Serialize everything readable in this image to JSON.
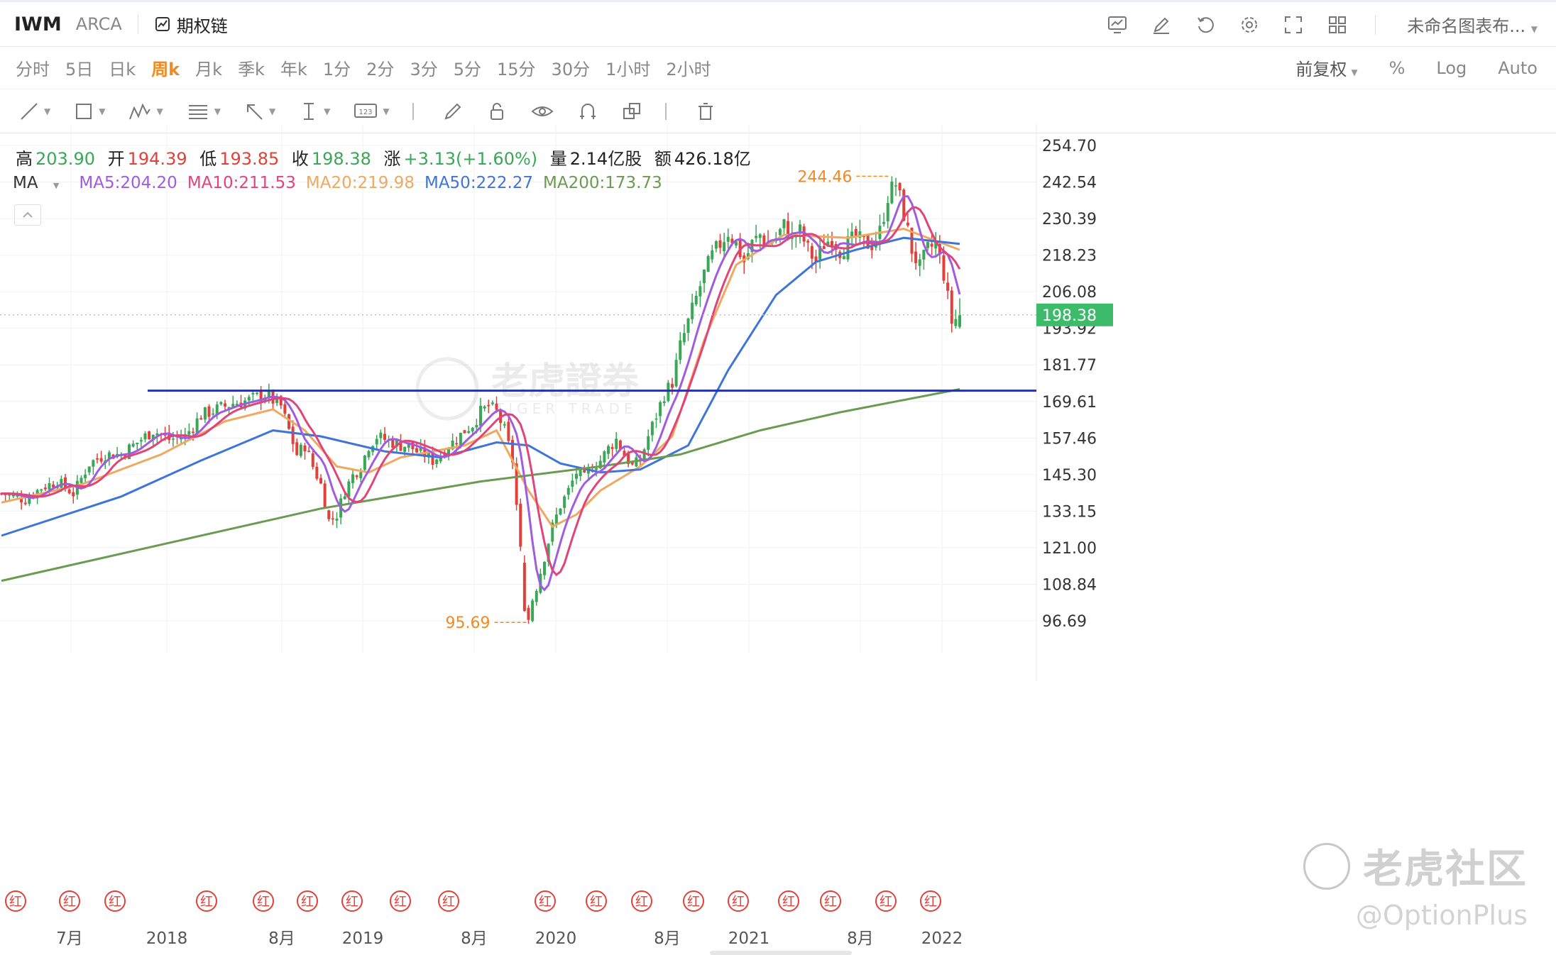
{
  "header": {
    "symbol": "IWM",
    "exchange": "ARCA",
    "option_chain": "期权链",
    "chart_name": "未命名图表布..."
  },
  "periods": [
    "分时",
    "5日",
    "日k",
    "周k",
    "月k",
    "季k",
    "年k",
    "1分",
    "2分",
    "3分",
    "5分",
    "15分",
    "30分",
    "1小时",
    "2小时"
  ],
  "active_period": "周k",
  "right_options": [
    "前复权",
    "%",
    "Log",
    "Auto"
  ],
  "ohlc": {
    "high_label": "高",
    "high": "203.90",
    "open_label": "开",
    "open": "194.39",
    "low_label": "低",
    "low": "193.85",
    "close_label": "收",
    "close": "198.38",
    "change_label": "涨",
    "change": "+3.13(+1.60%)",
    "volume_label": "量",
    "volume": "2.14亿股",
    "amount_label": "额",
    "amount": "426.18亿"
  },
  "ma_legend": {
    "label": "MA",
    "items": [
      {
        "text": "MA5:204.20",
        "color": "#a05ce0"
      },
      {
        "text": "MA10:211.53",
        "color": "#e0457a"
      },
      {
        "text": "MA20:219.98",
        "color": "#f0a860"
      },
      {
        "text": "MA50:222.27",
        "color": "#3f74d8"
      },
      {
        "text": "MA200:173.73",
        "color": "#6b9a52"
      }
    ]
  },
  "chart_data": {
    "type": "candlestick",
    "interval": "weekly",
    "y_ticks": [
      254.7,
      242.54,
      230.39,
      218.23,
      206.08,
      193.92,
      181.77,
      169.61,
      157.46,
      145.3,
      133.15,
      121.0,
      108.84,
      "96.69"
    ],
    "ylim": [
      96.69,
      254.7
    ],
    "x_labels": [
      "7月",
      "2018",
      "8月",
      "2019",
      "8月",
      "2020",
      "8月",
      "2021",
      "8月",
      "2022"
    ],
    "current_price": "198.38",
    "annotations": {
      "high": "244.46",
      "low": "95.69"
    },
    "dividend_marker": "红",
    "price_path": [
      [
        0,
        139
      ],
      [
        6,
        137
      ],
      [
        10,
        141
      ],
      [
        14,
        143
      ],
      [
        18,
        139
      ],
      [
        22,
        149
      ],
      [
        26,
        152
      ],
      [
        30,
        152
      ],
      [
        34,
        156
      ],
      [
        38,
        160
      ],
      [
        42,
        157
      ],
      [
        46,
        158
      ],
      [
        50,
        165
      ],
      [
        54,
        167
      ],
      [
        58,
        169
      ],
      [
        62,
        170
      ],
      [
        66,
        172
      ],
      [
        70,
        168
      ],
      [
        72,
        160
      ],
      [
        74,
        152
      ],
      [
        76,
        155
      ],
      [
        78,
        148
      ],
      [
        80,
        142
      ],
      [
        82,
        130
      ],
      [
        84,
        132
      ],
      [
        86,
        140
      ],
      [
        88,
        145
      ],
      [
        90,
        148
      ],
      [
        92,
        155
      ],
      [
        94,
        158
      ],
      [
        96,
        157
      ],
      [
        98,
        156
      ],
      [
        100,
        155
      ],
      [
        102,
        155
      ],
      [
        104,
        153
      ],
      [
        106,
        152
      ],
      [
        108,
        150
      ],
      [
        110,
        152
      ],
      [
        112,
        155
      ],
      [
        114,
        157
      ],
      [
        116,
        160
      ],
      [
        118,
        162
      ],
      [
        120,
        166
      ],
      [
        122,
        168
      ],
      [
        124,
        166
      ],
      [
        126,
        160
      ],
      [
        128,
        150
      ],
      [
        130,
        120
      ],
      [
        132,
        100
      ],
      [
        134,
        108
      ],
      [
        136,
        118
      ],
      [
        138,
        128
      ],
      [
        140,
        135
      ],
      [
        142,
        140
      ],
      [
        144,
        146
      ],
      [
        146,
        144
      ],
      [
        148,
        148
      ],
      [
        150,
        150
      ],
      [
        152,
        154
      ],
      [
        154,
        157
      ],
      [
        156,
        152
      ],
      [
        158,
        148
      ],
      [
        160,
        150
      ],
      [
        162,
        158
      ],
      [
        164,
        165
      ],
      [
        166,
        172
      ],
      [
        168,
        176
      ],
      [
        170,
        188
      ],
      [
        172,
        196
      ],
      [
        174,
        204
      ],
      [
        176,
        212
      ],
      [
        178,
        218
      ],
      [
        180,
        222
      ],
      [
        182,
        226
      ],
      [
        184,
        222
      ],
      [
        186,
        216
      ],
      [
        188,
        222
      ],
      [
        190,
        225
      ],
      [
        192,
        222
      ],
      [
        194,
        224
      ],
      [
        196,
        228
      ],
      [
        198,
        224
      ],
      [
        200,
        226
      ],
      [
        202,
        220
      ],
      [
        204,
        216
      ],
      [
        206,
        222
      ],
      [
        208,
        224
      ],
      [
        210,
        220
      ],
      [
        212,
        222
      ],
      [
        214,
        224
      ],
      [
        216,
        222
      ],
      [
        218,
        222
      ],
      [
        220,
        226
      ],
      [
        222,
        238
      ],
      [
        224,
        242
      ],
      [
        226,
        232
      ],
      [
        228,
        220
      ],
      [
        230,
        214
      ],
      [
        232,
        220
      ],
      [
        234,
        222
      ],
      [
        236,
        212
      ],
      [
        238,
        196
      ],
      [
        240,
        198
      ]
    ],
    "ma_series": [
      {
        "name": "MA20",
        "color": "#f0a860",
        "values": [
          [
            0,
            136
          ],
          [
            20,
            142
          ],
          [
            40,
            152
          ],
          [
            56,
            163
          ],
          [
            68,
            167
          ],
          [
            76,
            160
          ],
          [
            84,
            148
          ],
          [
            92,
            146
          ],
          [
            100,
            151
          ],
          [
            116,
            155
          ],
          [
            124,
            160
          ],
          [
            132,
            140
          ],
          [
            138,
            128
          ],
          [
            144,
            132
          ],
          [
            150,
            140
          ],
          [
            160,
            148
          ],
          [
            168,
            158
          ],
          [
            176,
            190
          ],
          [
            184,
            215
          ],
          [
            196,
            225
          ],
          [
            212,
            224
          ],
          [
            226,
            227
          ],
          [
            240,
            220
          ]
        ]
      },
      {
        "name": "MA50",
        "color": "#3f74d8",
        "values": [
          [
            0,
            125
          ],
          [
            30,
            138
          ],
          [
            50,
            150
          ],
          [
            68,
            160
          ],
          [
            80,
            158
          ],
          [
            96,
            153
          ],
          [
            110,
            151
          ],
          [
            124,
            156
          ],
          [
            132,
            155
          ],
          [
            140,
            149
          ],
          [
            150,
            146
          ],
          [
            160,
            147
          ],
          [
            172,
            155
          ],
          [
            182,
            180
          ],
          [
            194,
            205
          ],
          [
            204,
            216
          ],
          [
            214,
            220
          ],
          [
            226,
            224
          ],
          [
            240,
            222
          ]
        ]
      },
      {
        "name": "MA200",
        "color": "#6b9a52",
        "values": [
          [
            0,
            110
          ],
          [
            40,
            122
          ],
          [
            80,
            134
          ],
          [
            120,
            143
          ],
          [
            150,
            148
          ],
          [
            170,
            152
          ],
          [
            190,
            160
          ],
          [
            210,
            166
          ],
          [
            240,
            173.7
          ]
        ]
      }
    ],
    "support_line": {
      "value": 173.2,
      "color": "#1b2fcc"
    }
  },
  "watermarks": {
    "brand_cn": "老虎證券",
    "brand_en": "TIGER TRADE",
    "social": "老虎社区",
    "handle": "@OptionPlus"
  }
}
